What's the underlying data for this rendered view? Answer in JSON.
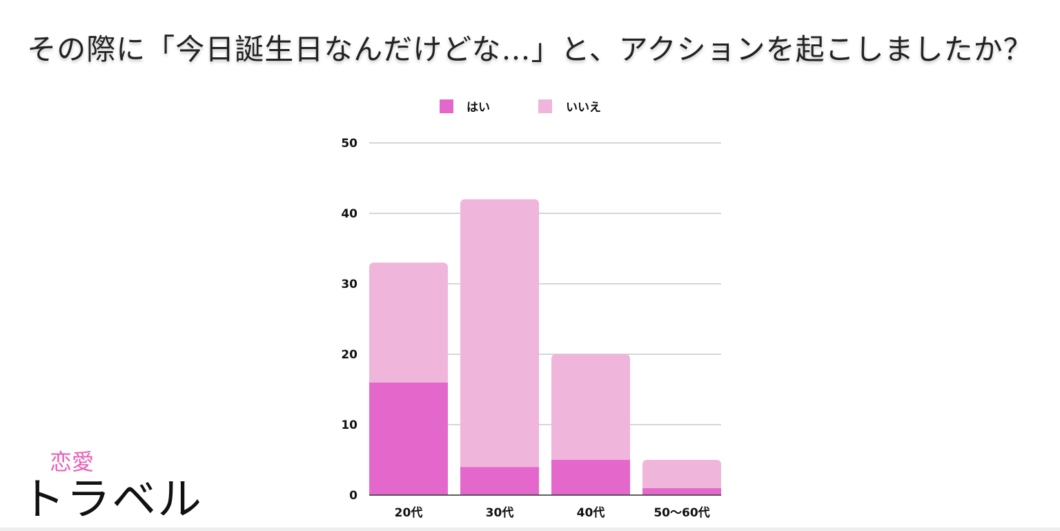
{
  "title": "その際に「今日誕生日なんだけどな…」と、アクションを起こしましたか？",
  "logo": {
    "small": "恋愛",
    "main": "トラベル"
  },
  "colors": {
    "yes": "#e468cc",
    "no": "#efb5da",
    "grid": "#c8c8c8",
    "text": "#111111"
  },
  "chart_data": {
    "type": "bar",
    "stacked": true,
    "categories": [
      "20代",
      "30代",
      "40代",
      "50〜60代"
    ],
    "series": [
      {
        "name": "はい",
        "values": [
          16,
          4,
          5,
          1
        ]
      },
      {
        "name": "いいえ",
        "values": [
          17,
          38,
          15,
          4
        ]
      }
    ],
    "ylim": [
      0,
      50
    ],
    "yticks": [
      0,
      10,
      20,
      30,
      40,
      50
    ],
    "grid": true,
    "legend": "top"
  }
}
